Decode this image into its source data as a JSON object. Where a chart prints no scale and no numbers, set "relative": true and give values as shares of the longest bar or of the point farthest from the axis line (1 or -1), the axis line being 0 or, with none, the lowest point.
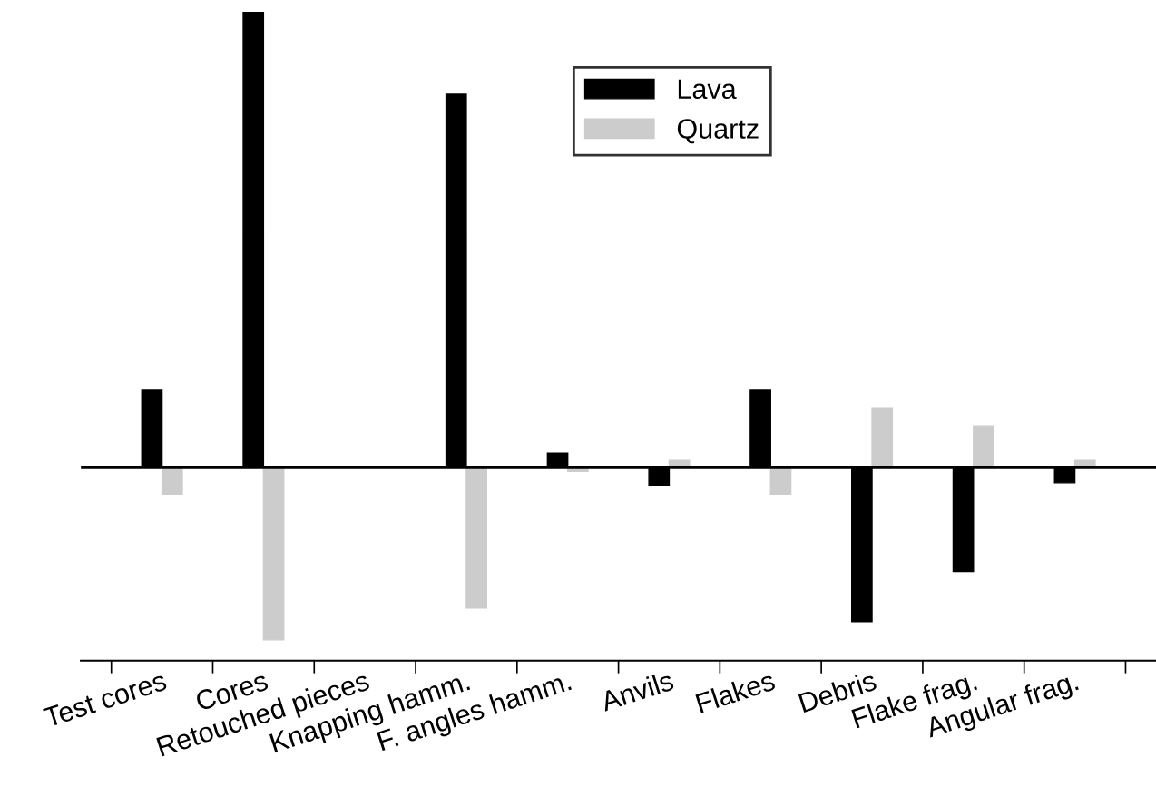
{
  "chart_data": {
    "type": "bar",
    "relative": true,
    "categories": [
      "Test cores",
      "Cores",
      "Retouched pieces",
      "Knapping hamm.",
      "F. angles hamm.",
      "Anvils",
      "Flakes",
      "Debris",
      "Flake frag.",
      "Angular frag."
    ],
    "series": [
      {
        "name": "Lava",
        "color": "#000000",
        "values": [
          0.17,
          1,
          null,
          0.82,
          0.03,
          -0.04,
          0.17,
          -0.34,
          -0.23,
          -0.035
        ]
      },
      {
        "name": "Quartz",
        "color": "#cccccc",
        "values": [
          -0.06,
          -0.38,
          null,
          -0.31,
          -0.01,
          0.016,
          -0.06,
          0.13,
          0.09,
          0.016
        ]
      }
    ],
    "legend": "top"
  }
}
